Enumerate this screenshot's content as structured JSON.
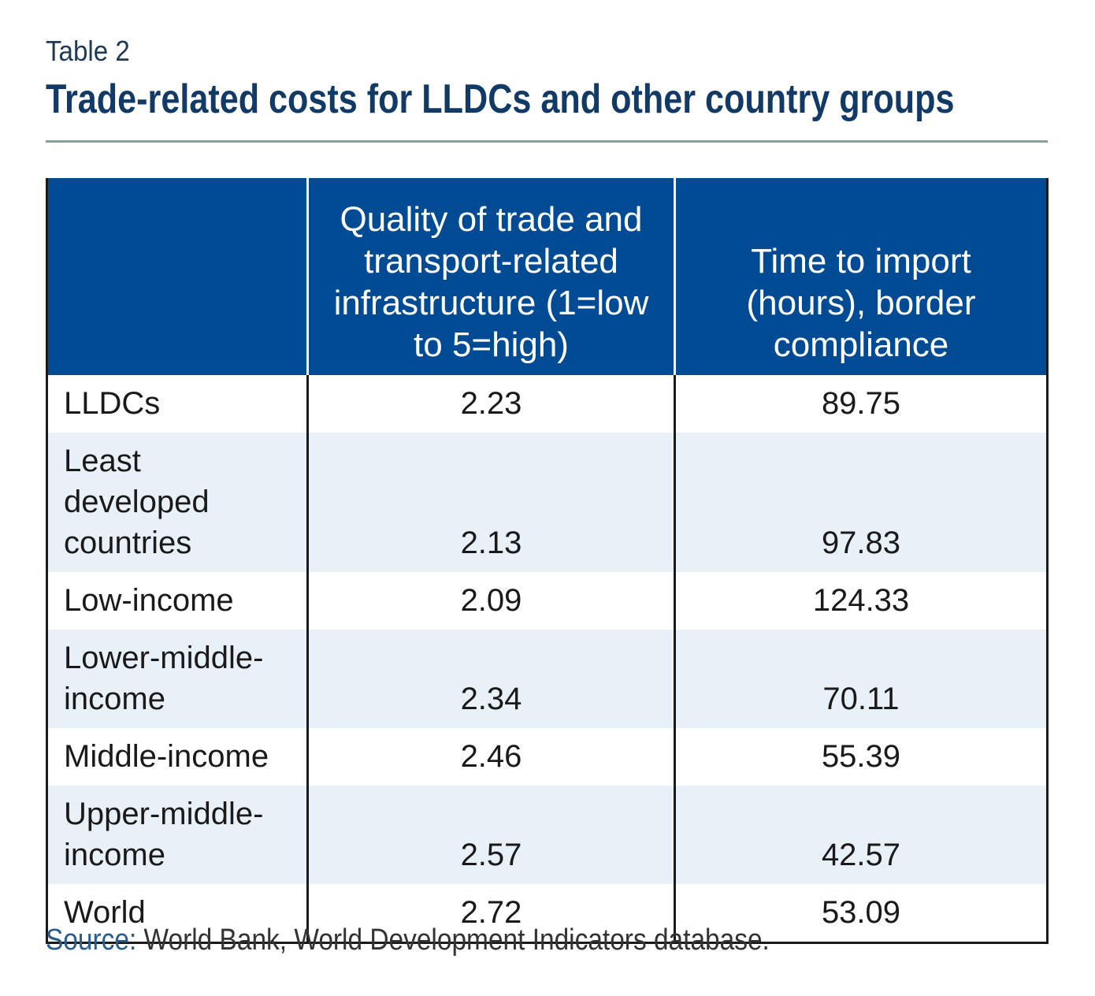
{
  "table_label": "Table 2",
  "title": "Trade-related costs for LLDCs and other country groups",
  "columns": [
    "",
    "Quality of trade and transport-related infrastructure (1=low to 5=high)",
    "Time to import (hours), border compliance"
  ],
  "rows": [
    {
      "group": "LLDCs",
      "quality": "2.23",
      "time": "89.75"
    },
    {
      "group": "Least developed countries",
      "quality": "2.13",
      "time": "97.83"
    },
    {
      "group": "Low-income",
      "quality": "2.09",
      "time": "124.33"
    },
    {
      "group": "Lower-middle-income",
      "quality": "2.34",
      "time": "70.11"
    },
    {
      "group": "Middle-income",
      "quality": "2.46",
      "time": "55.39"
    },
    {
      "group": "Upper-middle-income",
      "quality": "2.57",
      "time": "42.57"
    },
    {
      "group": "World",
      "quality": "2.72",
      "time": "53.09"
    }
  ],
  "source": {
    "label": "Source:",
    "text": "World Bank, World Development Indicators database."
  },
  "colors": {
    "header_bg": "#004b93",
    "title": "#123a66",
    "alt_row": "#e8f0f8",
    "rule": "#8aa396"
  }
}
